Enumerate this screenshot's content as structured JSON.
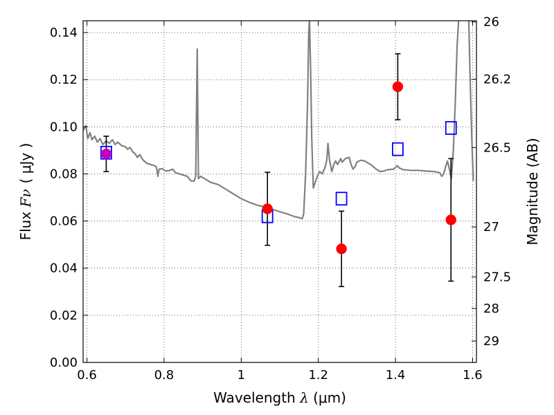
{
  "chart_data": {
    "type": "scatter",
    "xlabel": {
      "prefix": "Wavelength ",
      "symbol": "λ",
      "unit": " (μm)"
    },
    "ylabel": {
      "prefix": "Flux ",
      "symbol": "Fν",
      "unit": "( μJy )"
    },
    "y2label": "Magnitude (AB)",
    "xlim": [
      0.59,
      1.61
    ],
    "ylim": [
      0.0,
      0.145
    ],
    "grid": true,
    "x_ticks": [
      {
        "value": 0.6,
        "label": "0.6"
      },
      {
        "value": 0.8,
        "label": "0.8"
      },
      {
        "value": 1.0,
        "label": "1"
      },
      {
        "value": 1.2,
        "label": "1.2"
      },
      {
        "value": 1.4,
        "label": "1.4"
      },
      {
        "value": 1.6,
        "label": "1.6"
      }
    ],
    "y_ticks": [
      {
        "value": 0.0,
        "label": "0.00"
      },
      {
        "value": 0.02,
        "label": "0.02"
      },
      {
        "value": 0.04,
        "label": "0.04"
      },
      {
        "value": 0.06,
        "label": "0.06"
      },
      {
        "value": 0.08,
        "label": "0.08"
      },
      {
        "value": 0.1,
        "label": "0.10"
      },
      {
        "value": 0.12,
        "label": "0.12"
      },
      {
        "value": 0.14,
        "label": "0.14"
      }
    ],
    "y2_ticks": [
      {
        "flux": 0.1445,
        "label": "26"
      },
      {
        "flux": 0.1202,
        "label": "26.2"
      },
      {
        "flux": 0.0912,
        "label": "26.5"
      },
      {
        "flux": 0.0575,
        "label": "27"
      },
      {
        "flux": 0.0363,
        "label": "27.5"
      },
      {
        "flux": 0.0229,
        "label": "28"
      },
      {
        "flux": 0.0091,
        "label": "29"
      }
    ],
    "series": [
      {
        "type": "line",
        "color": "#808080",
        "points": [
          [
            0.59,
            0.0985
          ],
          [
            0.597,
            0.1005
          ],
          [
            0.602,
            0.095
          ],
          [
            0.608,
            0.0975
          ],
          [
            0.613,
            0.0945
          ],
          [
            0.62,
            0.096
          ],
          [
            0.627,
            0.0935
          ],
          [
            0.634,
            0.095
          ],
          [
            0.641,
            0.0925
          ],
          [
            0.65,
            0.094
          ],
          [
            0.658,
            0.093
          ],
          [
            0.666,
            0.0945
          ],
          [
            0.673,
            0.0925
          ],
          [
            0.68,
            0.0935
          ],
          [
            0.69,
            0.092
          ],
          [
            0.7,
            0.0915
          ],
          [
            0.705,
            0.0905
          ],
          [
            0.712,
            0.0912
          ],
          [
            0.718,
            0.0895
          ],
          [
            0.725,
            0.0885
          ],
          [
            0.731,
            0.087
          ],
          [
            0.737,
            0.0882
          ],
          [
            0.745,
            0.086
          ],
          [
            0.755,
            0.0845
          ],
          [
            0.765,
            0.084
          ],
          [
            0.775,
            0.0835
          ],
          [
            0.78,
            0.083
          ],
          [
            0.784,
            0.079
          ],
          [
            0.787,
            0.082
          ],
          [
            0.795,
            0.0822
          ],
          [
            0.805,
            0.0812
          ],
          [
            0.815,
            0.0815
          ],
          [
            0.822,
            0.082
          ],
          [
            0.83,
            0.0805
          ],
          [
            0.84,
            0.08
          ],
          [
            0.85,
            0.0795
          ],
          [
            0.86,
            0.079
          ],
          [
            0.87,
            0.077
          ],
          [
            0.878,
            0.077
          ],
          [
            0.882,
            0.079
          ],
          [
            0.886,
            0.133
          ],
          [
            0.889,
            0.078
          ],
          [
            0.895,
            0.079
          ],
          [
            0.905,
            0.078
          ],
          [
            0.92,
            0.0765
          ],
          [
            0.94,
            0.0755
          ],
          [
            0.96,
            0.0735
          ],
          [
            0.98,
            0.0715
          ],
          [
            1.0,
            0.0695
          ],
          [
            1.02,
            0.068
          ],
          [
            1.04,
            0.0668
          ],
          [
            1.06,
            0.066
          ],
          [
            1.08,
            0.065
          ],
          [
            1.1,
            0.064
          ],
          [
            1.12,
            0.063
          ],
          [
            1.14,
            0.0618
          ],
          [
            1.15,
            0.0615
          ],
          [
            1.158,
            0.061
          ],
          [
            1.162,
            0.063
          ],
          [
            1.167,
            0.08
          ],
          [
            1.172,
            0.11
          ],
          [
            1.175,
            0.14
          ],
          [
            1.177,
            0.146
          ],
          [
            1.18,
            0.125
          ],
          [
            1.183,
            0.095
          ],
          [
            1.187,
            0.074
          ],
          [
            1.195,
            0.078
          ],
          [
            1.203,
            0.081
          ],
          [
            1.21,
            0.08
          ],
          [
            1.218,
            0.083
          ],
          [
            1.222,
            0.086
          ],
          [
            1.225,
            0.093
          ],
          [
            1.229,
            0.086
          ],
          [
            1.235,
            0.081
          ],
          [
            1.24,
            0.084
          ],
          [
            1.245,
            0.0855
          ],
          [
            1.25,
            0.084
          ],
          [
            1.258,
            0.0865
          ],
          [
            1.262,
            0.085
          ],
          [
            1.27,
            0.0865
          ],
          [
            1.28,
            0.087
          ],
          [
            1.285,
            0.084
          ],
          [
            1.29,
            0.082
          ],
          [
            1.295,
            0.083
          ],
          [
            1.3,
            0.085
          ],
          [
            1.31,
            0.0858
          ],
          [
            1.32,
            0.0855
          ],
          [
            1.33,
            0.0845
          ],
          [
            1.34,
            0.0835
          ],
          [
            1.35,
            0.082
          ],
          [
            1.36,
            0.081
          ],
          [
            1.37,
            0.0812
          ],
          [
            1.38,
            0.0818
          ],
          [
            1.395,
            0.082
          ],
          [
            1.405,
            0.0835
          ],
          [
            1.41,
            0.0825
          ],
          [
            1.42,
            0.0818
          ],
          [
            1.44,
            0.0815
          ],
          [
            1.46,
            0.0815
          ],
          [
            1.48,
            0.0812
          ],
          [
            1.5,
            0.081
          ],
          [
            1.515,
            0.0805
          ],
          [
            1.52,
            0.079
          ],
          [
            1.525,
            0.08
          ],
          [
            1.53,
            0.083
          ],
          [
            1.535,
            0.0855
          ],
          [
            1.54,
            0.082
          ],
          [
            1.545,
            0.078
          ],
          [
            1.55,
            0.09
          ],
          [
            1.555,
            0.11
          ],
          [
            1.56,
            0.135
          ],
          [
            1.564,
            0.146
          ],
          [
            1.59,
            0.146
          ],
          [
            1.593,
            0.125
          ],
          [
            1.598,
            0.095
          ],
          [
            1.602,
            0.077
          ]
        ]
      },
      {
        "type": "scatter",
        "marker": "circle",
        "color": "#ff0000",
        "x": [
          0.65,
          1.068,
          1.26,
          1.406,
          1.544
        ],
        "y": [
          0.0885,
          0.0652,
          0.0482,
          0.117,
          0.0605
        ],
        "yerr": [
          0.0075,
          0.0155,
          0.016,
          0.014,
          0.026
        ]
      },
      {
        "type": "scatter",
        "marker": "square-open",
        "color": "#0000ff",
        "x": [
          0.65,
          1.068,
          1.26,
          1.406,
          1.544
        ],
        "y": [
          0.089,
          0.062,
          0.0695,
          0.0905,
          0.0995
        ]
      }
    ]
  }
}
